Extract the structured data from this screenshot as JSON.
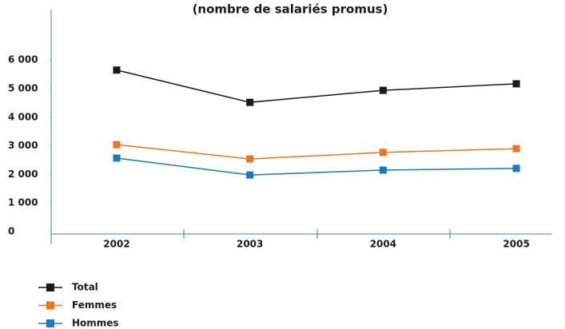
{
  "chart_data": {
    "type": "line",
    "title": "(nombre de salariés promus)",
    "categories": [
      "2002",
      "2003",
      "2004",
      "2005"
    ],
    "series": [
      {
        "name": "Total",
        "color": "#1a1a1a",
        "values": [
          5650,
          4520,
          4940,
          5170
        ]
      },
      {
        "name": "Femmes",
        "color": "#e87722",
        "values": [
          3040,
          2540,
          2770,
          2900
        ]
      },
      {
        "name": "Hommes",
        "color": "#1a7bb5",
        "values": [
          2570,
          1980,
          2150,
          2210
        ]
      }
    ],
    "ylim": [
      0,
      7800
    ],
    "yticks": [
      0,
      {
        "value": 1000,
        "label": "1 000"
      },
      {
        "value": 2000,
        "label": "2 000"
      },
      {
        "value": 3000,
        "label": "3 000"
      },
      {
        "value": 4000,
        "label": "4 000"
      },
      {
        "value": 5000,
        "label": "5 000"
      },
      {
        "value": 6000,
        "label": "6 000"
      }
    ],
    "grid": false,
    "legend": "bottom-left"
  }
}
